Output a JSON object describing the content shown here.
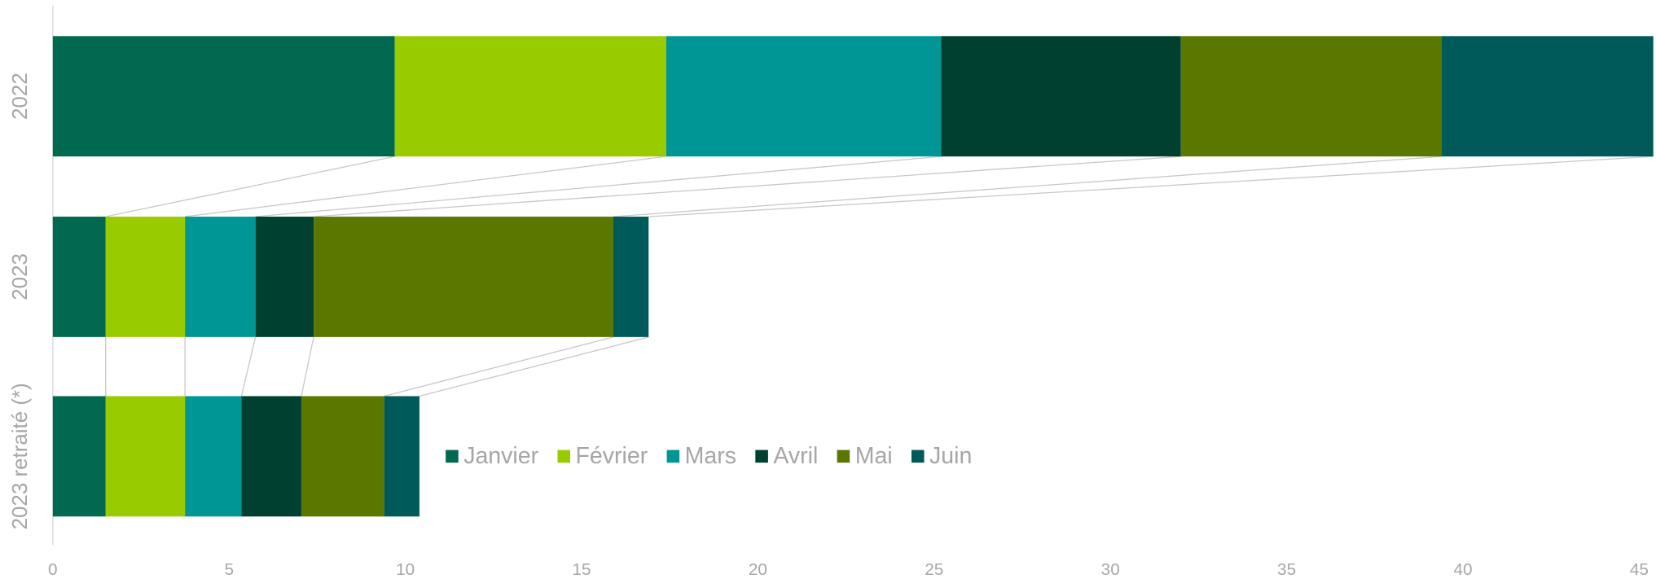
{
  "chart_data": {
    "type": "bar",
    "orientation": "horizontal",
    "stacked": true,
    "categories": [
      "2022",
      "2023",
      "2023 retraité (*)"
    ],
    "series": [
      {
        "name": "Janvier",
        "color": "#00694f",
        "values": [
          9.7,
          1.5,
          1.5
        ]
      },
      {
        "name": "Février",
        "color": "#99cc00",
        "values": [
          7.7,
          2.25,
          2.25
        ]
      },
      {
        "name": "Mars",
        "color": "#009696",
        "values": [
          7.8,
          2.0,
          1.6
        ]
      },
      {
        "name": "Avril",
        "color": "#004030",
        "values": [
          6.8,
          1.65,
          1.7
        ]
      },
      {
        "name": "Mai",
        "color": "#5a7800",
        "values": [
          7.4,
          8.5,
          2.35
        ]
      },
      {
        "name": "Juin",
        "color": "#005a5a",
        "values": [
          6.0,
          1.0,
          1.0
        ]
      }
    ],
    "xlim": [
      0,
      45.5
    ],
    "xticks": [
      0,
      5,
      10,
      15,
      20,
      25,
      30,
      35,
      40,
      45
    ]
  }
}
